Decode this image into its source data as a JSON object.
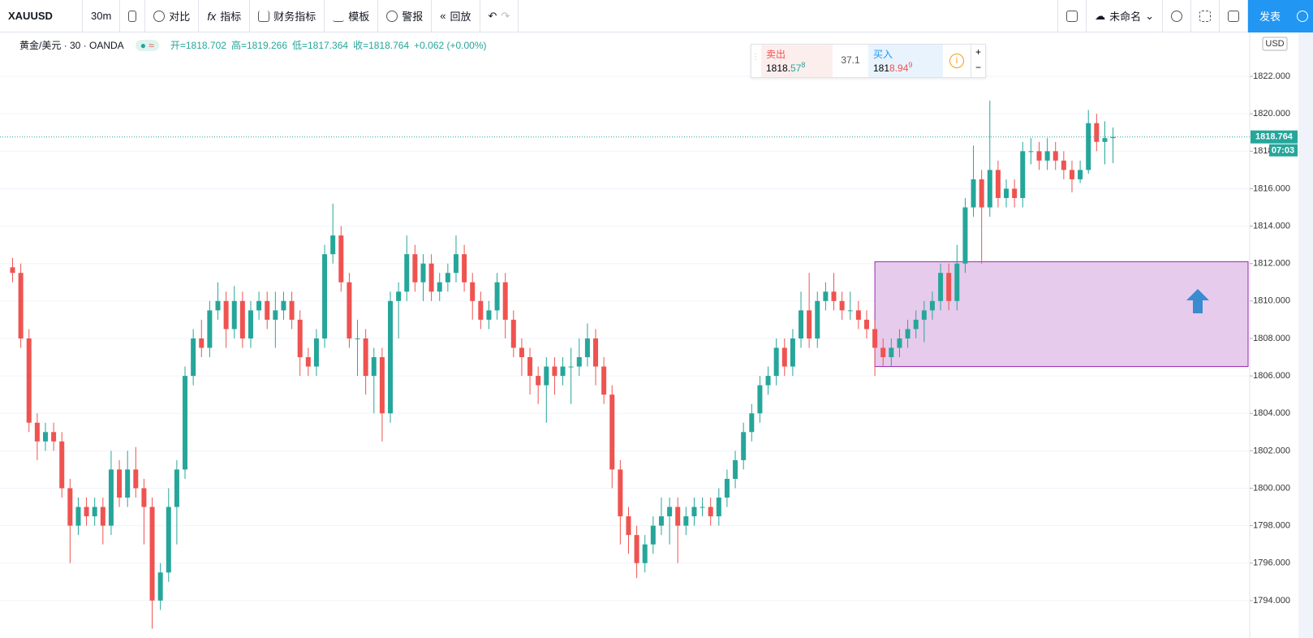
{
  "toolbar": {
    "symbol": "XAUUSD",
    "interval": "30m",
    "items": [
      "对比",
      "指标",
      "财务指标",
      "模板",
      "警报",
      "回放"
    ],
    "layout_name": "未命名",
    "publish": "发表"
  },
  "legend": {
    "title": "黄金/美元 · 30 · OANDA",
    "open": "开=1818.702",
    "high": "高=1819.266",
    "low": "低=1817.364",
    "close": "收=1818.764",
    "change": "+0.062 (+0.00%)"
  },
  "trade_panel": {
    "sell_label": "卖出",
    "sell_price_a": "1818.",
    "sell_price_b": "57",
    "sell_sup": "8",
    "spread": "37.1",
    "buy_label": "买入",
    "buy_price_a": "181",
    "buy_price_b": "8.94",
    "buy_sup": "9"
  },
  "chart_data": {
    "type": "candlestick",
    "open": [
      1811.8,
      1811.5,
      1808,
      1803.5,
      1802.5,
      1803,
      1802.5,
      1800,
      1798,
      1799,
      1798.5,
      1799,
      1798,
      1801,
      1799.5,
      1801,
      1800,
      1799,
      1794,
      1795.5,
      1799,
      1801,
      1806,
      1808,
      1807.5,
      1809.5,
      1810,
      1808.5,
      1810,
      1808,
      1809.5,
      1810,
      1809,
      1809.5,
      1810,
      1809,
      1807,
      1806.5,
      1808,
      1812.5,
      1813.5,
      1811,
      1808,
      1808,
      1806,
      1807,
      1804,
      1810,
      1810.5,
      1812.5,
      1811,
      1812,
      1810.5,
      1811,
      1811.5,
      1812.5,
      1811,
      1810,
      1809,
      1809.5,
      1811,
      1809,
      1807.5,
      1807,
      1806,
      1805.5,
      1806.5,
      1806,
      1806.5,
      1806.5,
      1807,
      1808,
      1806.5,
      1805,
      1801,
      1798.5,
      1797.5,
      1796,
      1797,
      1798,
      1798.5,
      1799,
      1798,
      1798.5,
      1799,
      1799,
      1798.5,
      1799.5,
      1800.5,
      1801.5,
      1803,
      1804,
      1805.5,
      1806,
      1807.5,
      1806.5,
      1808,
      1809.5,
      1808,
      1810,
      1810.5,
      1810,
      1809.5,
      1809.5,
      1809,
      1808.5,
      1807.5,
      1807,
      1807.5,
      1808,
      1808.5,
      1809,
      1809.5,
      1810,
      1811.5,
      1810,
      1812,
      1815,
      1816.5,
      1815,
      1817,
      1815.5,
      1816,
      1815.5,
      1818,
      1818,
      1817.5,
      1818,
      1817.5,
      1817,
      1816.5,
      1817,
      1819.5,
      1818.5,
      1818.702
    ],
    "high": [
      1812.3,
      1812,
      1808.5,
      1804,
      1803.5,
      1803.5,
      1803,
      1800.5,
      1799.5,
      1799.5,
      1799.5,
      1799.5,
      1802,
      1801.5,
      1802,
      1802.2,
      1800.5,
      1799.5,
      1796,
      1800,
      1801.5,
      1806.5,
      1808.5,
      1809,
      1810,
      1811,
      1810.5,
      1810.8,
      1810.5,
      1810,
      1810.5,
      1810.5,
      1810.5,
      1810.5,
      1810.5,
      1809.5,
      1807.5,
      1808.5,
      1813,
      1815.2,
      1814,
      1811.5,
      1809,
      1808.5,
      1807.5,
      1807.5,
      1810.5,
      1811,
      1813.5,
      1813,
      1812.5,
      1812.5,
      1811.5,
      1812,
      1813.5,
      1813,
      1811.5,
      1810.5,
      1810,
      1811.5,
      1811.5,
      1809.5,
      1808,
      1807.5,
      1806.5,
      1807,
      1807,
      1807,
      1807.5,
      1808,
      1808.8,
      1808.5,
      1807,
      1805.5,
      1801.5,
      1799,
      1798,
      1797.5,
      1798.5,
      1799.5,
      1799.5,
      1799.5,
      1799,
      1799.5,
      1799.5,
      1799.5,
      1800,
      1801,
      1802,
      1803.5,
      1804.5,
      1806,
      1806.5,
      1808,
      1808,
      1808.5,
      1810.5,
      1811.5,
      1810.5,
      1811,
      1811.5,
      1810.5,
      1810.5,
      1810,
      1809.5,
      1809,
      1808,
      1808,
      1808.5,
      1809,
      1809.5,
      1810,
      1810.5,
      1812,
      1812,
      1813,
      1815.5,
      1818.3,
      1817,
      1820.7,
      1817.5,
      1816.5,
      1816.5,
      1818.5,
      1818.7,
      1818.5,
      1818.7,
      1818.5,
      1818,
      1817.5,
      1817.5,
      1820.2,
      1820,
      1819.6,
      1819.266
    ],
    "low": [
      1811,
      1807.5,
      1803,
      1801.5,
      1802,
      1802,
      1799.5,
      1796,
      1797.5,
      1798,
      1798,
      1797,
      1797.5,
      1799,
      1799,
      1799.5,
      1797,
      1792.5,
      1793.5,
      1795,
      1797,
      1800.5,
      1805.5,
      1807,
      1807,
      1809,
      1807.5,
      1808,
      1807.5,
      1807.5,
      1809,
      1808.5,
      1807.5,
      1809,
      1808.5,
      1806,
      1806,
      1806,
      1807.5,
      1812,
      1810.5,
      1807.5,
      1806,
      1805,
      1804,
      1802.5,
      1803.5,
      1808,
      1810,
      1810.5,
      1810,
      1810,
      1810,
      1810.5,
      1811,
      1810.5,
      1809,
      1808.5,
      1808.5,
      1809,
      1808,
      1807,
      1806,
      1805,
      1804.5,
      1803.5,
      1805,
      1805.5,
      1804.5,
      1806,
      1806.5,
      1805.5,
      1804.5,
      1800,
      1797,
      1796.5,
      1795.2,
      1795.5,
      1796.5,
      1797.5,
      1797,
      1796,
      1797.5,
      1798,
      1798.5,
      1798,
      1798,
      1799,
      1800,
      1801,
      1802.5,
      1803.5,
      1805,
      1805.5,
      1806,
      1806,
      1807.5,
      1807.5,
      1807.5,
      1809.5,
      1809.5,
      1809,
      1809,
      1808.5,
      1808,
      1806,
      1806.5,
      1806.5,
      1807,
      1807.5,
      1808,
      1807.8,
      1809,
      1809.5,
      1809.5,
      1809.5,
      1811.5,
      1814.5,
      1812,
      1814.5,
      1815,
      1815,
      1815,
      1815,
      1817.3,
      1817,
      1817,
      1817,
      1816.5,
      1815.8,
      1816.3,
      1816.8,
      1818,
      1817.3,
      1817.364
    ],
    "close": [
      1811.5,
      1808,
      1803.5,
      1802.5,
      1803,
      1802.5,
      1800,
      1798,
      1799,
      1798.5,
      1799,
      1798,
      1801,
      1799.5,
      1801,
      1800,
      1799,
      1794,
      1795.5,
      1799,
      1801,
      1806,
      1808,
      1807.5,
      1809.5,
      1810,
      1808.5,
      1810,
      1808,
      1809.5,
      1810,
      1809,
      1809.5,
      1810,
      1809,
      1807,
      1806.5,
      1808,
      1812.5,
      1813.5,
      1811,
      1808,
      1808,
      1806,
      1807,
      1804,
      1810,
      1810.5,
      1812.5,
      1811,
      1812,
      1810.5,
      1811,
      1811.5,
      1812.5,
      1811,
      1810,
      1809,
      1809.5,
      1811,
      1809,
      1807.5,
      1807,
      1806,
      1805.5,
      1806.5,
      1806,
      1806.5,
      1806.5,
      1807,
      1808,
      1806.5,
      1805,
      1801,
      1798.5,
      1797.5,
      1796,
      1797,
      1798,
      1798.5,
      1799,
      1798,
      1798.5,
      1799,
      1799,
      1798.5,
      1799.5,
      1800.5,
      1801.5,
      1803,
      1804,
      1805.5,
      1806,
      1807.5,
      1806.5,
      1808,
      1809.5,
      1808,
      1810,
      1810.5,
      1810,
      1809.5,
      1809.5,
      1809,
      1808.5,
      1807.5,
      1807,
      1807.5,
      1808,
      1808.5,
      1809,
      1809.5,
      1810,
      1811.5,
      1810,
      1812,
      1815,
      1816.5,
      1815,
      1817,
      1815.5,
      1816,
      1815.5,
      1818,
      1818,
      1817.5,
      1818,
      1817.5,
      1817,
      1816.5,
      1817,
      1819.5,
      1818.5,
      1818.7,
      1818.764
    ],
    "up_color": "#26a69a",
    "down_color": "#ef5350",
    "ylim": [
      1792,
      1824.3
    ],
    "yticks": [
      {
        "value": 1794,
        "label": "1794.000"
      },
      {
        "value": 1796,
        "label": "1796.000"
      },
      {
        "value": 1798,
        "label": "1798.000"
      },
      {
        "value": 1800,
        "label": "1800.000"
      },
      {
        "value": 1802,
        "label": "1802.000"
      },
      {
        "value": 1804,
        "label": "1804.000"
      },
      {
        "value": 1806,
        "label": "1806.000"
      },
      {
        "value": 1808,
        "label": "1808.000"
      },
      {
        "value": 1810,
        "label": "1810.000"
      },
      {
        "value": 1812,
        "label": "1812.000"
      },
      {
        "value": 1814,
        "label": "1814.000"
      },
      {
        "value": 1816,
        "label": "1816.000"
      },
      {
        "value": 1818,
        "label": "1818.000"
      },
      {
        "value": 1820,
        "label": "1820.000"
      },
      {
        "value": 1822,
        "label": "1822.000"
      }
    ],
    "grid": true,
    "currency": "USD",
    "countdown": "07:03",
    "zone": {
      "low": 1806.5,
      "high": 1812.1,
      "start_index": 105,
      "color": "#e1bee7"
    }
  }
}
